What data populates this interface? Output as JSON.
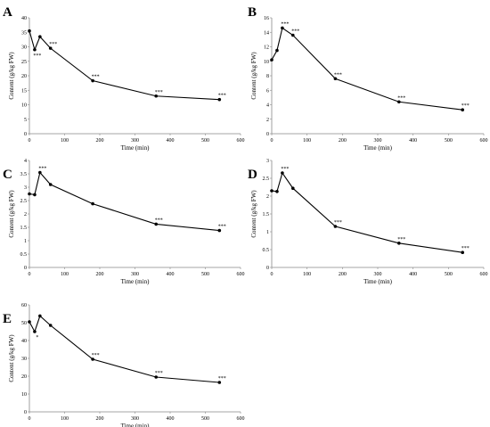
{
  "chart_data": [
    {
      "type": "line",
      "panel_label": "A",
      "xlabel": "Time (min)",
      "ylabel": "Content (g/kg FW)",
      "xlim": [
        0,
        600
      ],
      "ylim": [
        0,
        40
      ],
      "xticks": [
        "0",
        "100",
        "200",
        "300",
        "400",
        "500",
        "600"
      ],
      "yticks": [
        "0",
        "5",
        "10",
        "15",
        "20",
        "25",
        "30",
        "35",
        "40"
      ],
      "x": [
        0,
        15,
        30,
        60,
        180,
        360,
        540
      ],
      "y": [
        35.5,
        29,
        33.5,
        29.5,
        18.3,
        13,
        11.8
      ],
      "annotations": [
        "",
        "***",
        "",
        "***",
        "***",
        "***",
        "***"
      ],
      "grid": false
    },
    {
      "type": "line",
      "panel_label": "B",
      "xlabel": "Time (min)",
      "ylabel": "Content (g/kg FW)",
      "xlim": [
        0,
        600
      ],
      "ylim": [
        0,
        16
      ],
      "xticks": [
        "0",
        "100",
        "200",
        "300",
        "400",
        "500",
        "600"
      ],
      "yticks": [
        "0",
        "2",
        "4",
        "6",
        "8",
        "10",
        "12",
        "14",
        "16"
      ],
      "x": [
        0,
        15,
        30,
        60,
        180,
        360,
        540
      ],
      "y": [
        10.2,
        11.5,
        14.6,
        13.6,
        7.6,
        4.4,
        3.3
      ],
      "annotations": [
        "",
        "",
        "***",
        "***",
        "***",
        "***",
        "***"
      ],
      "grid": false
    },
    {
      "type": "line",
      "panel_label": "C",
      "xlabel": "Time (min)",
      "ylabel": "Content (g/kg FW)",
      "xlim": [
        0,
        600
      ],
      "ylim": [
        0,
        4
      ],
      "xticks": [
        "0",
        "100",
        "200",
        "300",
        "400",
        "500",
        "600"
      ],
      "yticks": [
        "0",
        "0.5",
        "1",
        "1.5",
        "2",
        "2.5",
        "3",
        "3.5",
        "4"
      ],
      "x": [
        0,
        15,
        30,
        60,
        180,
        360,
        540
      ],
      "y": [
        2.75,
        2.72,
        3.55,
        3.1,
        2.38,
        1.62,
        1.38
      ],
      "annotations": [
        "",
        "",
        "***",
        "",
        "",
        "***",
        "***"
      ],
      "grid": false
    },
    {
      "type": "line",
      "panel_label": "D",
      "xlabel": "Time (min)",
      "ylabel": "Content (g/kg FW)",
      "xlim": [
        0,
        600
      ],
      "ylim": [
        0,
        3
      ],
      "xticks": [
        "0",
        "100",
        "200",
        "300",
        "400",
        "500",
        "600"
      ],
      "yticks": [
        "0",
        "0.5",
        "1",
        "1.5",
        "2",
        "2.5",
        "3"
      ],
      "x": [
        0,
        15,
        30,
        60,
        180,
        360,
        540
      ],
      "y": [
        2.15,
        2.13,
        2.65,
        2.22,
        1.15,
        0.68,
        0.42
      ],
      "annotations": [
        "",
        "",
        "***",
        "",
        "***",
        "***",
        "***"
      ],
      "grid": false
    },
    {
      "type": "line",
      "panel_label": "E",
      "xlabel": "Time (min)",
      "ylabel": "Content (g/kg FW)",
      "xlim": [
        0,
        600
      ],
      "ylim": [
        0,
        60
      ],
      "xticks": [
        "0",
        "100",
        "200",
        "300",
        "400",
        "500",
        "600"
      ],
      "yticks": [
        "0",
        "10",
        "20",
        "30",
        "40",
        "50",
        "60"
      ],
      "x": [
        0,
        15,
        30,
        60,
        180,
        360,
        540
      ],
      "y": [
        50.5,
        45,
        53.8,
        48.5,
        29.5,
        19.5,
        16.5
      ],
      "annotations": [
        "",
        "*",
        "",
        "",
        "***",
        "***",
        "***"
      ],
      "grid": false
    }
  ]
}
